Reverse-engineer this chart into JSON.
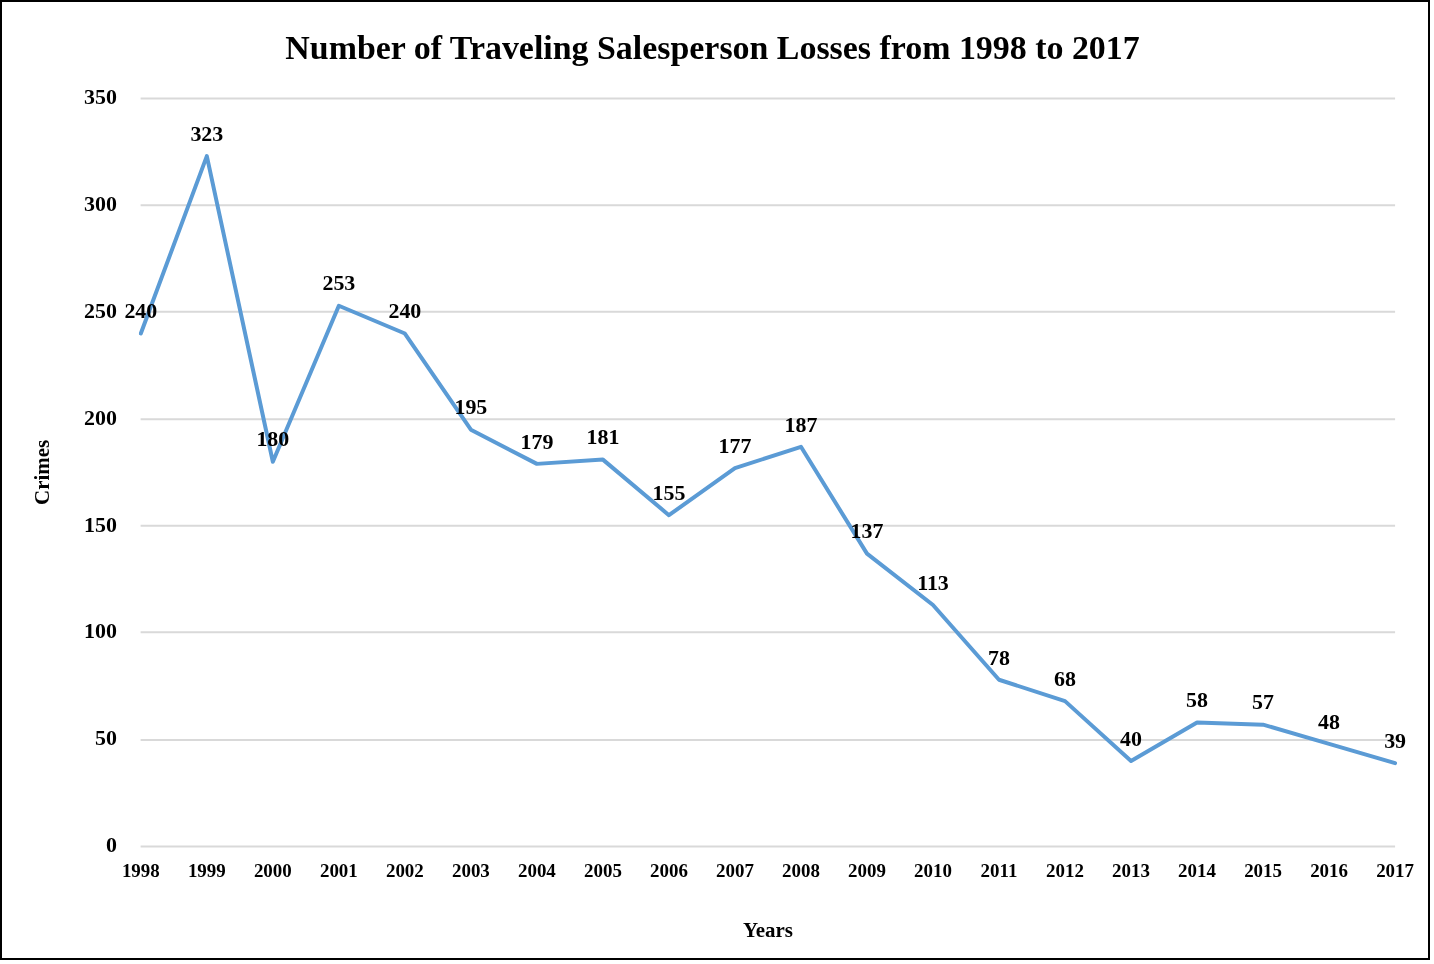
{
  "chart_data": {
    "type": "line",
    "title": "Number of Traveling Salesperson Losses from 1998 to 2017",
    "xlabel": "Years",
    "ylabel": "Crimes",
    "categories": [
      "1998",
      "1999",
      "2000",
      "2001",
      "2002",
      "2003",
      "2004",
      "2005",
      "2006",
      "2007",
      "2008",
      "2009",
      "2010",
      "2011",
      "2012",
      "2013",
      "2014",
      "2015",
      "2016",
      "2017"
    ],
    "series": [
      {
        "color": "#5b9bd5",
        "values": [
          240,
          323,
          180,
          253,
          240,
          195,
          179,
          181,
          155,
          177,
          187,
          137,
          113,
          78,
          68,
          40,
          58,
          57,
          48,
          39
        ]
      }
    ],
    "ylim": [
      0,
      350
    ],
    "yticks": [
      0,
      50,
      100,
      150,
      200,
      250,
      300,
      350
    ],
    "grid": "y",
    "legend": false,
    "marker": "none",
    "line_style": "solid",
    "data_labels": true
  }
}
